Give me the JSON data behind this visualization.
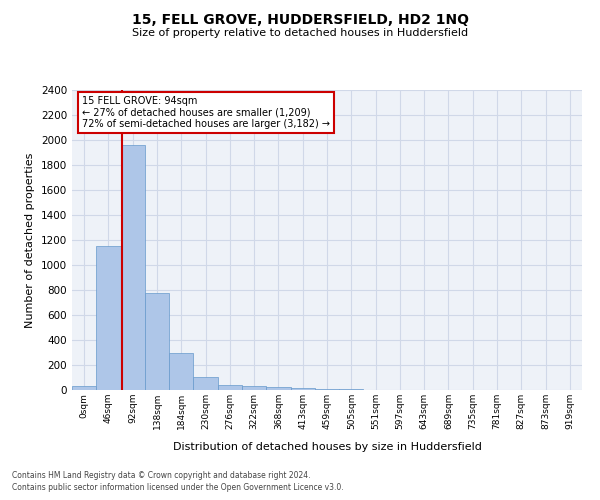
{
  "title": "15, FELL GROVE, HUDDERSFIELD, HD2 1NQ",
  "subtitle": "Size of property relative to detached houses in Huddersfield",
  "xlabel": "Distribution of detached houses by size in Huddersfield",
  "ylabel": "Number of detached properties",
  "footnote1": "Contains HM Land Registry data © Crown copyright and database right 2024.",
  "footnote2": "Contains public sector information licensed under the Open Government Licence v3.0.",
  "bin_labels": [
    "0sqm",
    "46sqm",
    "92sqm",
    "138sqm",
    "184sqm",
    "230sqm",
    "276sqm",
    "322sqm",
    "368sqm",
    "413sqm",
    "459sqm",
    "505sqm",
    "551sqm",
    "597sqm",
    "643sqm",
    "689sqm",
    "735sqm",
    "781sqm",
    "827sqm",
    "873sqm",
    "919sqm"
  ],
  "bar_values": [
    30,
    1150,
    1960,
    780,
    300,
    105,
    40,
    35,
    25,
    20,
    10,
    5,
    2,
    1,
    1,
    1,
    1,
    1,
    0,
    0,
    0
  ],
  "bar_color": "#aec6e8",
  "bar_edge_color": "#6699cc",
  "bar_edge_width": 0.5,
  "grid_color": "#d0d8e8",
  "background_color": "#eef2f8",
  "red_line_x": 2.04,
  "red_line_color": "#cc0000",
  "annotation_title": "15 FELL GROVE: 94sqm",
  "annotation_line1": "← 27% of detached houses are smaller (1,209)",
  "annotation_line2": "72% of semi-detached houses are larger (3,182) →",
  "annotation_box_color": "white",
  "annotation_box_edge": "#cc0000",
  "ylim": [
    0,
    2400
  ],
  "ytick_interval": 200
}
